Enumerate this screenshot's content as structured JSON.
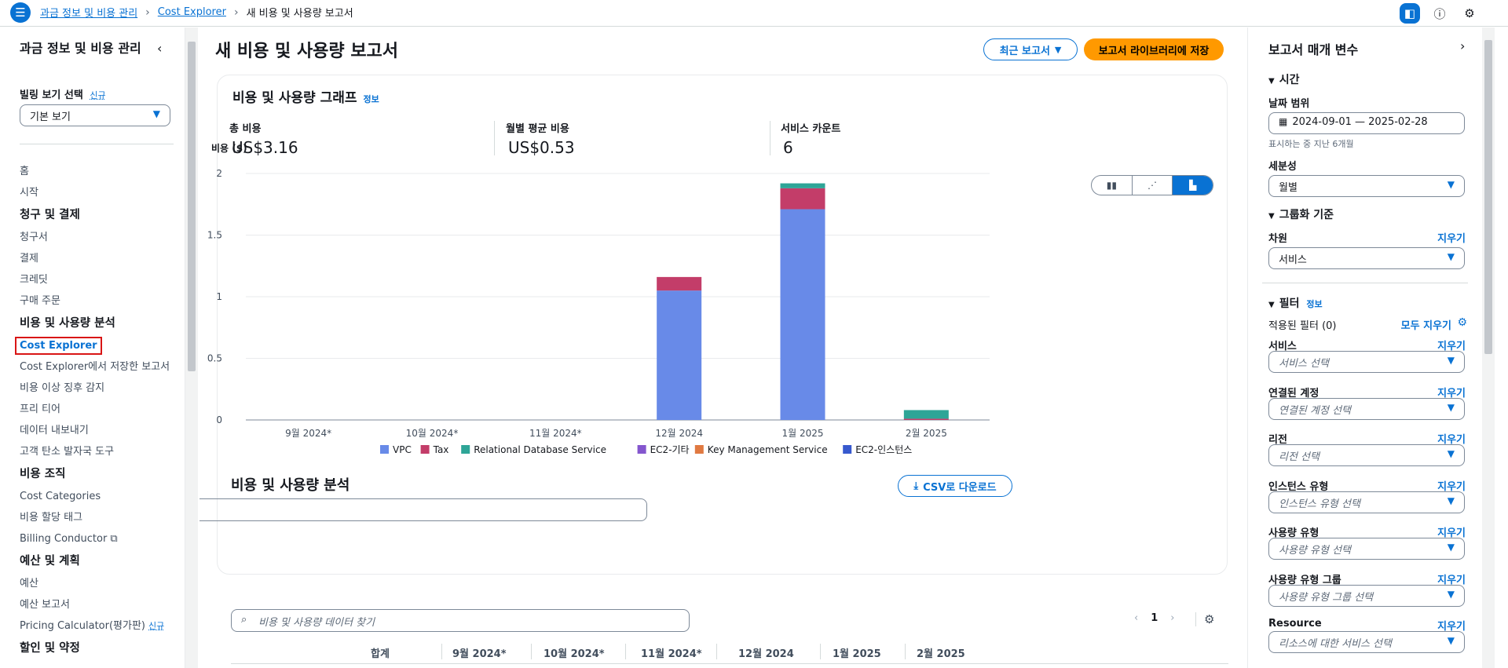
{
  "breadcrumb": {
    "items": [
      "과금 정보 및 비용 관리",
      "Cost Explorer",
      "새 비용 및 사용량 보고서"
    ]
  },
  "sidebar": {
    "title": "과금 정보 및 비용 관리",
    "billing_view_label": "빌링 보기 선택",
    "billing_view_new": "신규",
    "billing_view_value": "기본 보기",
    "items": [
      {
        "type": "item",
        "label": "홈"
      },
      {
        "type": "item",
        "label": "시작"
      },
      {
        "type": "head",
        "label": "청구 및 결제"
      },
      {
        "type": "item",
        "label": "청구서"
      },
      {
        "type": "item",
        "label": "결제"
      },
      {
        "type": "item",
        "label": "크레딧"
      },
      {
        "type": "item",
        "label": "구매 주문"
      },
      {
        "type": "head",
        "label": "비용 및 사용량 분석"
      },
      {
        "type": "active",
        "label": "Cost Explorer"
      },
      {
        "type": "item",
        "label": "Cost Explorer에서 저장한 보고서"
      },
      {
        "type": "item",
        "label": "비용 이상 징후 감지"
      },
      {
        "type": "item",
        "label": "프리 티어"
      },
      {
        "type": "item",
        "label": "데이터 내보내기"
      },
      {
        "type": "item",
        "label": "고객 탄소 발자국 도구"
      },
      {
        "type": "head",
        "label": "비용 조직"
      },
      {
        "type": "item",
        "label": "Cost Categories"
      },
      {
        "type": "item",
        "label": "비용 할당 태그"
      },
      {
        "type": "ext",
        "label": "Billing Conductor"
      },
      {
        "type": "head",
        "label": "예산 및 계획"
      },
      {
        "type": "item",
        "label": "예산"
      },
      {
        "type": "item",
        "label": "예산 보고서"
      },
      {
        "type": "new",
        "label": "Pricing Calculator(평가판)",
        "badge": "신규"
      },
      {
        "type": "head",
        "label": "할인 및 약정"
      }
    ]
  },
  "main": {
    "title": "새 비용 및 사용량 보고서",
    "recent_btn": "최근 보고서",
    "save_btn": "보고서 라이브러리에 저장",
    "graph_title": "비용 및 사용량 그래프",
    "info": "정보",
    "metrics": [
      {
        "label": "총 비용",
        "value": "US$3.16"
      },
      {
        "label": "월별 평균 비용",
        "value": "US$0.53"
      },
      {
        "label": "서비스 카운트",
        "value": "6"
      }
    ],
    "analysis_title": "비용 및 사용량 분석",
    "csv_btn": "CSV로 다운로드",
    "search_placeholder": "비용 및 사용량 데이터 찾기",
    "page_number": "1",
    "table_headers": [
      "합계",
      "9월 2024*",
      "10월 2024*",
      "11월 2024*",
      "12월 2024",
      "1월 2025",
      "2월 2025"
    ]
  },
  "chart_data": {
    "type": "bar",
    "stacked": true,
    "ylabel": "비용 ($)",
    "ylim": [
      0,
      2
    ],
    "yticks": [
      "0",
      "0.5",
      "1",
      "1.5",
      "2"
    ],
    "categories": [
      "9월 2024*",
      "10월 2024*",
      "11월 2024*",
      "12월 2024",
      "1월 2025",
      "2월 2025"
    ],
    "series": [
      {
        "name": "VPC",
        "color": "#688ae8",
        "values": [
          0,
          0,
          0,
          1.05,
          1.71,
          0
        ]
      },
      {
        "name": "Tax",
        "color": "#c33d69",
        "values": [
          0,
          0,
          0,
          0.11,
          0.17,
          0.01
        ]
      },
      {
        "name": "Relational Database Service",
        "color": "#2ea597",
        "values": [
          0,
          0,
          0,
          0,
          0.04,
          0.07
        ]
      },
      {
        "name": "EC2-기타",
        "color": "#8456ce",
        "values": [
          0,
          0,
          0,
          0,
          0,
          0
        ]
      },
      {
        "name": "Key Management Service",
        "color": "#e07941",
        "values": [
          0,
          0,
          0,
          0,
          0,
          0
        ]
      },
      {
        "name": "EC2-인스턴스",
        "color": "#3759ce",
        "values": [
          0,
          0,
          0,
          0,
          0,
          0
        ]
      }
    ],
    "grid": true,
    "legend": "bottom"
  },
  "rpanel": {
    "title": "보고서 매개 변수",
    "time_section": "시간",
    "date_range_label": "날짜 범위",
    "date_range_value": "2024-09-01 — 2025-02-28",
    "date_hint": "표시하는 중 지난 6개월",
    "granularity_label": "세분성",
    "granularity_value": "월별",
    "group_section": "그룹화 기준",
    "dimension_label": "차원",
    "clear": "지우기",
    "dimension_value": "서비스",
    "filter_section": "필터",
    "filter_info": "정보",
    "applied_filters": "적용된 필터 (0)",
    "clear_all": "모두 지우기",
    "filters": [
      {
        "label": "서비스",
        "placeholder": "서비스 선택"
      },
      {
        "label": "연결된 계정",
        "placeholder": "연결된 계정 선택"
      },
      {
        "label": "리전",
        "placeholder": "리전 선택"
      },
      {
        "label": "인스턴스 유형",
        "placeholder": "인스턴스 유형 선택"
      },
      {
        "label": "사용량 유형",
        "placeholder": "사용량 유형 선택"
      },
      {
        "label": "사용량 유형 그룹",
        "placeholder": "사용량 유형 그룹 선택"
      },
      {
        "label": "Resource",
        "placeholder": "리소스에 대한 서비스 선택"
      }
    ]
  }
}
